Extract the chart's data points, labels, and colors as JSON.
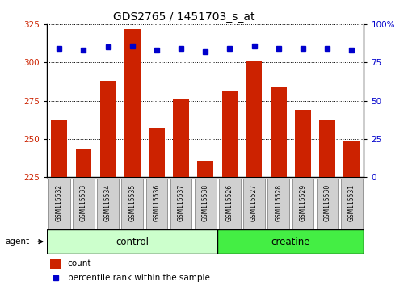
{
  "title": "GDS2765 / 1451703_s_at",
  "categories": [
    "GSM115532",
    "GSM115533",
    "GSM115534",
    "GSM115535",
    "GSM115536",
    "GSM115537",
    "GSM115538",
    "GSM115526",
    "GSM115527",
    "GSM115528",
    "GSM115529",
    "GSM115530",
    "GSM115531"
  ],
  "counts": [
    263,
    243,
    288,
    322,
    257,
    276,
    236,
    281,
    301,
    284,
    269,
    262,
    249
  ],
  "percentiles": [
    84,
    83,
    85,
    86,
    83,
    84,
    82,
    84,
    86,
    84,
    84,
    84,
    83
  ],
  "bar_color": "#cc2200",
  "dot_color": "#0000cc",
  "ylim_left": [
    225,
    325
  ],
  "ylim_right": [
    0,
    100
  ],
  "yticks_left": [
    225,
    250,
    275,
    300,
    325
  ],
  "yticks_right": [
    0,
    25,
    50,
    75,
    100
  ],
  "group1_label": "control",
  "group2_label": "creatine",
  "group1_count": 7,
  "group2_count": 6,
  "agent_label": "agent",
  "legend_count_label": "count",
  "legend_pct_label": "percentile rank within the sample",
  "background_color": "#ffffff",
  "tick_label_bg": "#d0d0d0",
  "group1_bg": "#ccffcc",
  "group2_bg": "#44ee44",
  "right_axis_label": "100%"
}
